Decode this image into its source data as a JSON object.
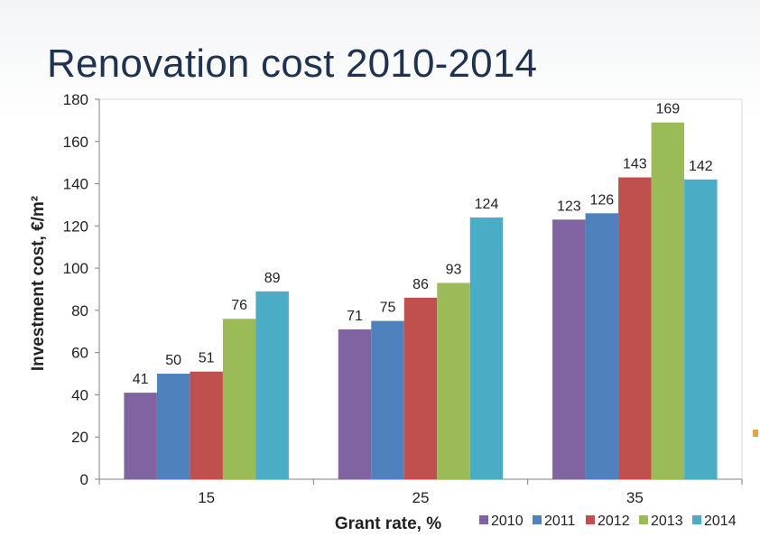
{
  "slide": {
    "title": "Renovation cost 2010-2014"
  },
  "chart_data": {
    "type": "bar",
    "title": "",
    "xlabel": "Grant rate, %",
    "ylabel": "Investment cost, €/m²",
    "categories": [
      "15",
      "25",
      "35"
    ],
    "ylim": [
      0,
      180
    ],
    "yticks": [
      0,
      20,
      40,
      60,
      80,
      100,
      120,
      140,
      160,
      180
    ],
    "grid": false,
    "legend": "bottom-right",
    "series": [
      {
        "name": "2010",
        "color": "#8064a2",
        "values": [
          41,
          71,
          123
        ]
      },
      {
        "name": "2011",
        "color": "#4f81bd",
        "values": [
          50,
          75,
          126
        ]
      },
      {
        "name": "2012",
        "color": "#c0504d",
        "values": [
          51,
          86,
          143
        ]
      },
      {
        "name": "2013",
        "color": "#9bbb59",
        "values": [
          76,
          93,
          169
        ]
      },
      {
        "name": "2014",
        "color": "#4bacc6",
        "values": [
          89,
          124,
          142
        ]
      }
    ]
  }
}
